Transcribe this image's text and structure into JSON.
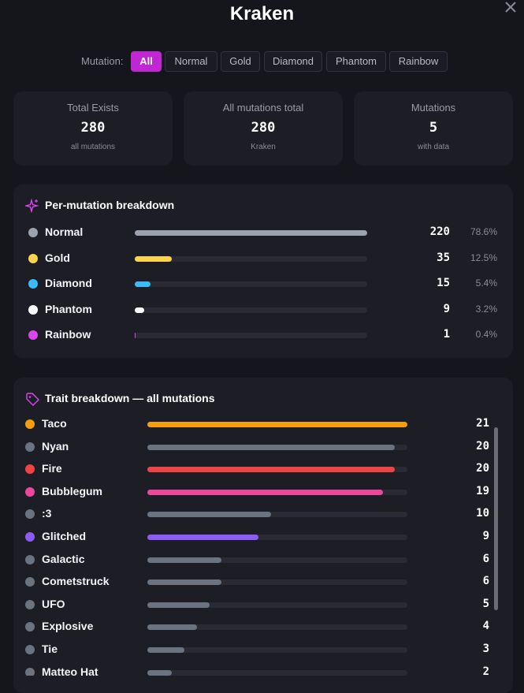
{
  "header": {
    "title": "Kraken"
  },
  "filter": {
    "label": "Mutation:",
    "options": [
      "All",
      "Normal",
      "Gold",
      "Diamond",
      "Phantom",
      "Rainbow"
    ],
    "selected": 0
  },
  "stats": [
    {
      "label": "Total Exists",
      "value": 280,
      "sub": "all mutations"
    },
    {
      "label": "All mutations total",
      "value": 280,
      "sub": "Kraken"
    },
    {
      "label": "Mutations",
      "value": 5,
      "sub": "with data"
    }
  ],
  "mutation_breakdown": {
    "title": "Per-mutation breakdown",
    "rows": [
      {
        "name": "Normal",
        "count": 220,
        "percent": "78.6%",
        "color": "#9ca3af"
      },
      {
        "name": "Gold",
        "count": 35,
        "percent": "12.5%",
        "color": "#fcd34d"
      },
      {
        "name": "Diamond",
        "count": 15,
        "percent": "5.4%",
        "color": "#38bdf8"
      },
      {
        "name": "Phantom",
        "count": 9,
        "percent": "3.2%",
        "color": "#ffffff"
      },
      {
        "name": "Rainbow",
        "count": 1,
        "percent": "0.4%",
        "color": "#d946ef"
      }
    ]
  },
  "trait_breakdown": {
    "title": "Trait breakdown — all mutations",
    "rows": [
      {
        "name": "Taco",
        "count": 21,
        "color": "#f59e0b"
      },
      {
        "name": "Nyan",
        "count": 20,
        "color": "#6b7280"
      },
      {
        "name": "Fire",
        "count": 20,
        "color": "#ef4444"
      },
      {
        "name": "Bubblegum",
        "count": 19,
        "color": "#ec4899"
      },
      {
        "name": ":3",
        "count": 10,
        "color": "#6b7280"
      },
      {
        "name": "Glitched",
        "count": 9,
        "color": "#8b5cf6"
      },
      {
        "name": "Galactic",
        "count": 6,
        "color": "#6b7280"
      },
      {
        "name": "Cometstruck",
        "count": 6,
        "color": "#6b7280"
      },
      {
        "name": "UFO",
        "count": 5,
        "color": "#6b7280"
      },
      {
        "name": "Explosive",
        "count": 4,
        "color": "#6b7280"
      },
      {
        "name": "Tie",
        "count": 3,
        "color": "#6b7280"
      },
      {
        "name": "Matteo Hat",
        "count": 2,
        "color": "#6b7280"
      }
    ]
  }
}
